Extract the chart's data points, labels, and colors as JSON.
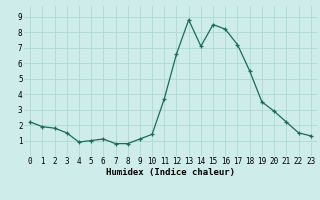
{
  "x": [
    0,
    1,
    2,
    3,
    4,
    5,
    6,
    7,
    8,
    9,
    10,
    11,
    12,
    13,
    14,
    15,
    16,
    17,
    18,
    19,
    20,
    21,
    22,
    23
  ],
  "y": [
    2.2,
    1.9,
    1.8,
    1.5,
    0.9,
    1.0,
    1.1,
    0.8,
    0.8,
    1.1,
    1.4,
    3.7,
    6.6,
    8.8,
    7.1,
    8.5,
    8.2,
    7.2,
    5.5,
    3.5,
    2.9,
    2.2,
    1.5,
    1.3
  ],
  "xlabel": "Humidex (Indice chaleur)",
  "xlim": [
    -0.5,
    23.5
  ],
  "ylim": [
    0.0,
    9.7
  ],
  "yticks": [
    1,
    2,
    3,
    4,
    5,
    6,
    7,
    8,
    9
  ],
  "xticks": [
    0,
    1,
    2,
    3,
    4,
    5,
    6,
    7,
    8,
    9,
    10,
    11,
    12,
    13,
    14,
    15,
    16,
    17,
    18,
    19,
    20,
    21,
    22,
    23
  ],
  "line_color": "#1a6b5a",
  "marker": "+",
  "bg_color": "#ceecea",
  "grid_color": "#aed8d4",
  "tick_fontsize": 5.5,
  "xlabel_fontsize": 6.5
}
